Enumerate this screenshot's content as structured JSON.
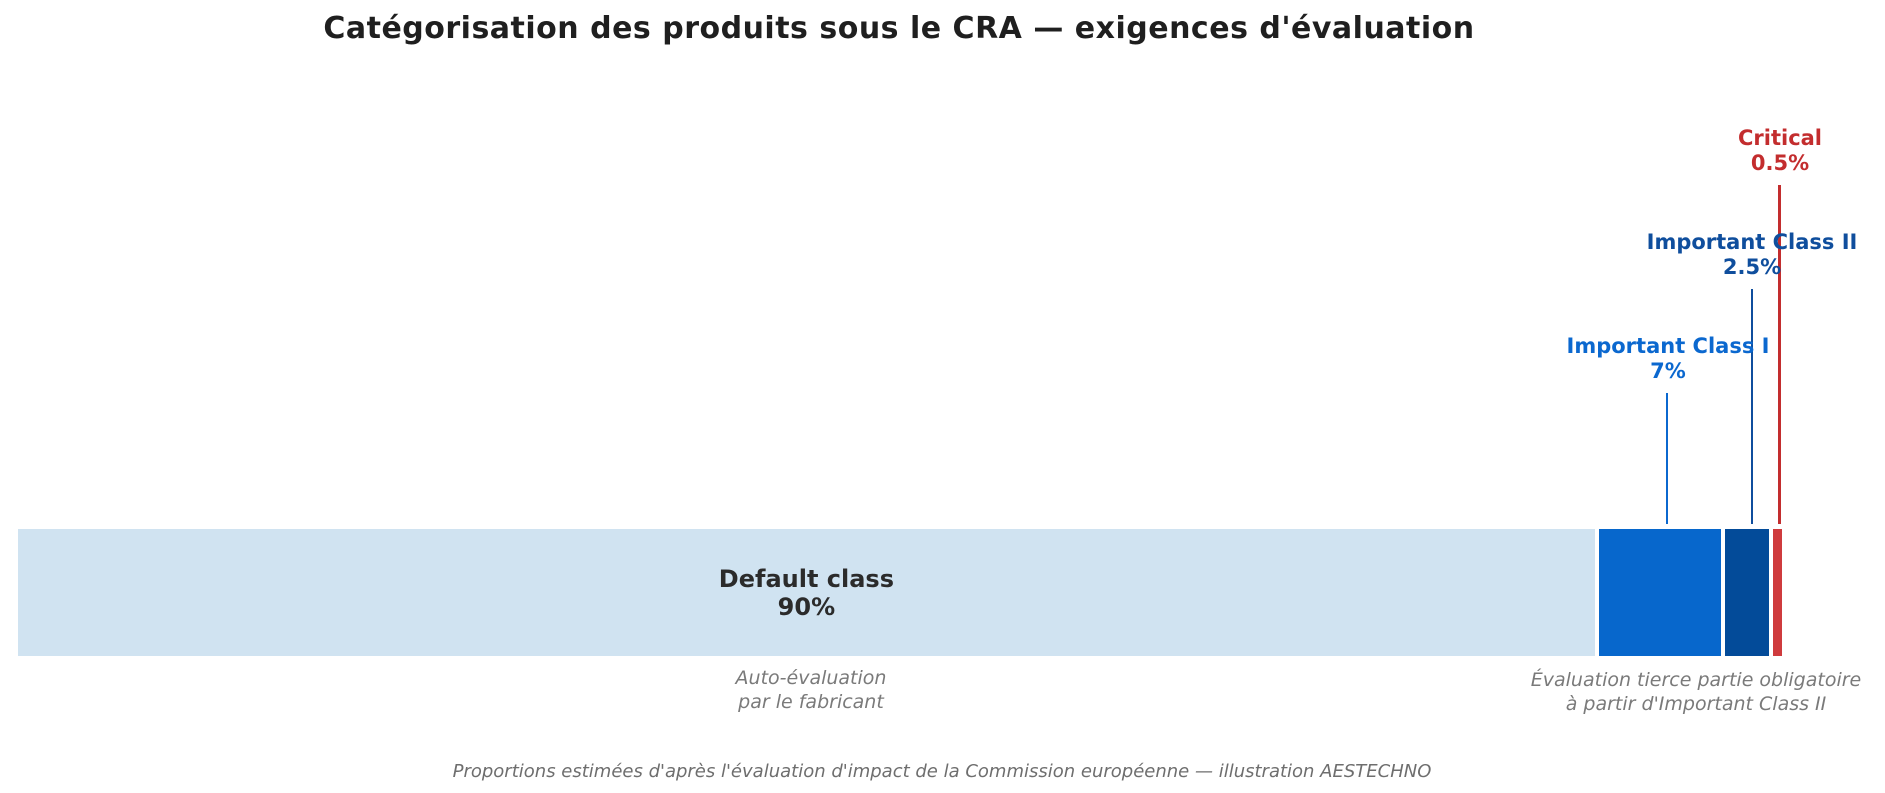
{
  "chart_data": {
    "type": "bar",
    "variant": "horizontal-stacked-proportion",
    "title": "Catégorisation des produits sous le CRA — exigences d'évaluation",
    "unit": "%",
    "total": 100,
    "xlim": [
      0,
      100
    ],
    "grid": false,
    "legend": "none (direct labels)",
    "categories": [
      "Default class",
      "Important Class I",
      "Important Class II",
      "Critical"
    ],
    "values": [
      90,
      7,
      2.5,
      0.5
    ],
    "segments": [
      {
        "name": "Default class",
        "value": 90,
        "pct_label": "90%",
        "color": "#d0e3f1",
        "label_color": "#2b2b2b",
        "label_placement": "inside"
      },
      {
        "name": "Important Class I",
        "value": 7,
        "pct_label": "7%",
        "color": "#0767cc",
        "label_color": "#0b68cf",
        "label_placement": "above-with-leader-line"
      },
      {
        "name": "Important Class II",
        "value": 2.5,
        "pct_label": "2.5%",
        "color": "#034b99",
        "label_color": "#0f4e9d",
        "label_placement": "above-with-leader-line"
      },
      {
        "name": "Critical",
        "value": 0.5,
        "pct_label": "0.5%",
        "color": "#cf3b3d",
        "label_color": "#c32d2e",
        "label_placement": "above-with-leader-line"
      }
    ]
  },
  "annotations": {
    "left": {
      "line1": "Auto-évaluation",
      "line2": "par le fabricant"
    },
    "right": {
      "line1": "Évaluation tierce partie obligatoire",
      "line2": "à partir d'Important Class II"
    }
  },
  "footnote": "Proportions estimées d'après l'évaluation d'impact de la Commission européenne — illustration AESTECHNO",
  "colors": {
    "background": "#ffffff",
    "title_text": "#1f1f1f",
    "annotation_text": "#7a7a7a",
    "footnote_text": "#6e6e6e"
  }
}
